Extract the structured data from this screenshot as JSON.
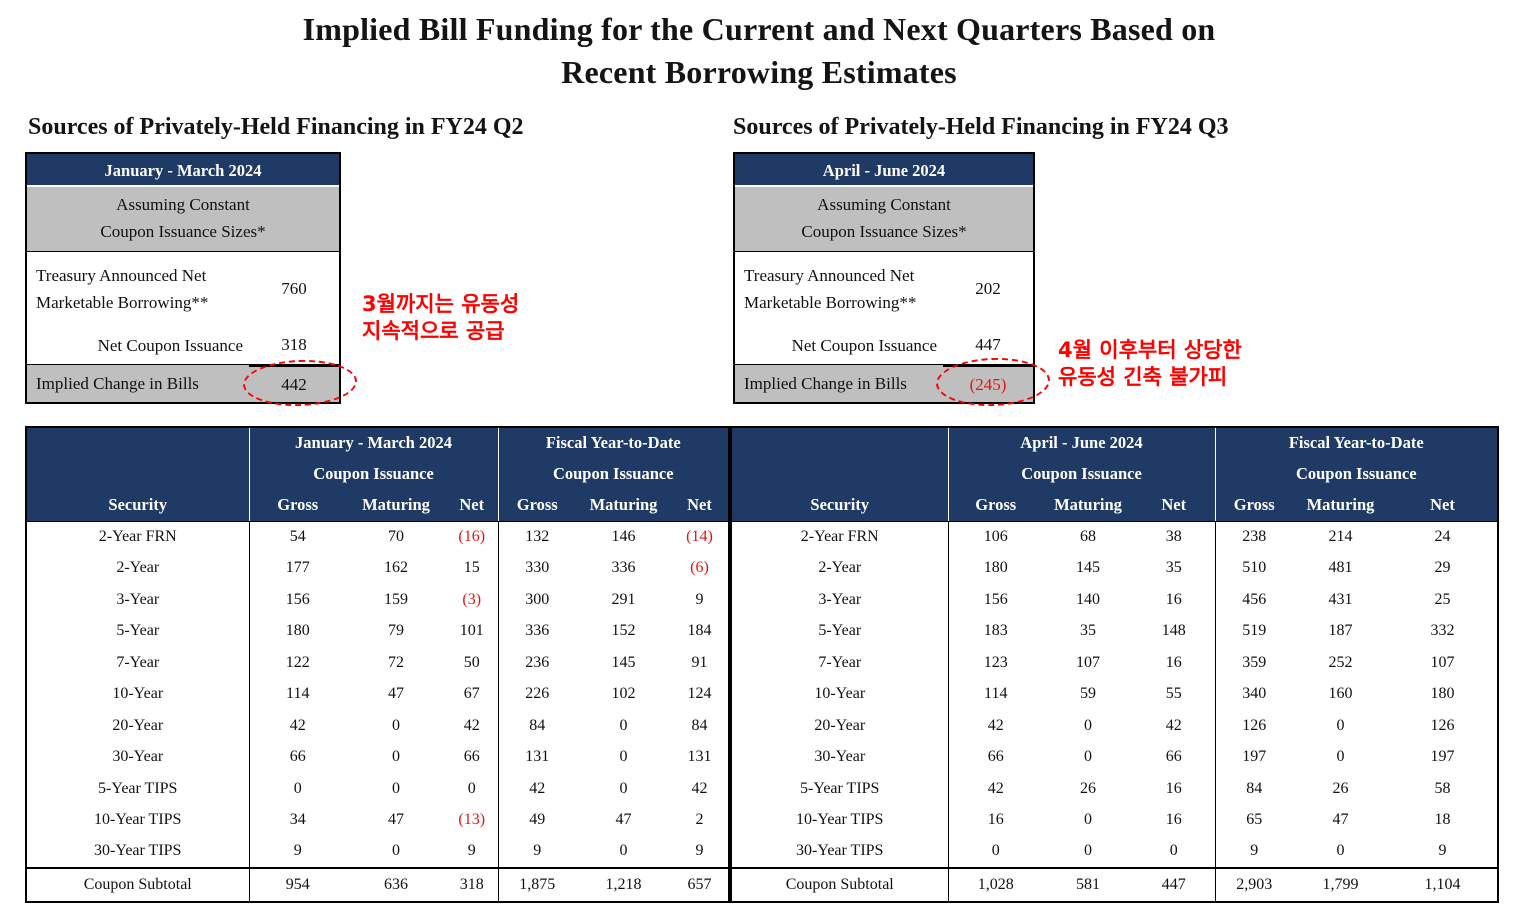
{
  "title": {
    "line1": "Implied Bill Funding for the Current and Next Quarters Based on",
    "line2": "Recent Borrowing Estimates"
  },
  "colors": {
    "header_navy": "#203A66",
    "band_gray": "#BFBFBF",
    "negative_red": "#E01616",
    "annotation_red": "#FF0000"
  },
  "left_panel": {
    "subtitle": "Sources of Privately-Held Financing in FY24 Q2",
    "summary": {
      "period": "January - March 2024",
      "assumption_line1": "Assuming Constant",
      "assumption_line2": "Coupon Issuance Sizes*",
      "borrowing_label_line1": "Treasury Announced Net",
      "borrowing_label_line2": "Marketable Borrowing**",
      "borrowing_value": "760",
      "net_coupon_label": "Net Coupon Issuance",
      "net_coupon_value": "318",
      "implied_label": "Implied Change in Bills",
      "implied_value": "442",
      "implied_negative": "false"
    },
    "annotation_line1": "3월까지는 유동성",
    "annotation_line2": "지속적으로 공급"
  },
  "right_panel": {
    "subtitle": "Sources of Privately-Held Financing in FY24 Q3",
    "summary": {
      "period": "April - June 2024",
      "assumption_line1": "Assuming Constant",
      "assumption_line2": "Coupon Issuance Sizes*",
      "borrowing_label_line1": "Treasury Announced Net",
      "borrowing_label_line2": "Marketable Borrowing**",
      "borrowing_value": "202",
      "net_coupon_label": "Net Coupon Issuance",
      "net_coupon_value": "447",
      "implied_label": "Implied Change in Bills",
      "implied_value": "(245)",
      "implied_negative": "true"
    },
    "annotation_line1": "4월 이후부터 상당한",
    "annotation_line2": "유동성 긴축 불가피"
  },
  "detail_table": {
    "security_label": "Security",
    "coupon_issuance_label": "Coupon Issuance",
    "fiscal_ytd_label": "Fiscal Year-to-Date",
    "col_headers": [
      "Gross",
      "Maturing",
      "Net"
    ],
    "left": {
      "group_title": "January - March 2024",
      "rows": [
        [
          "2-Year FRN",
          "54",
          "70",
          "(16)",
          "132",
          "146",
          "(14)"
        ],
        [
          "2-Year",
          "177",
          "162",
          "15",
          "330",
          "336",
          "(6)"
        ],
        [
          "3-Year",
          "156",
          "159",
          "(3)",
          "300",
          "291",
          "9"
        ],
        [
          "5-Year",
          "180",
          "79",
          "101",
          "336",
          "152",
          "184"
        ],
        [
          "7-Year",
          "122",
          "72",
          "50",
          "236",
          "145",
          "91"
        ],
        [
          "10-Year",
          "114",
          "47",
          "67",
          "226",
          "102",
          "124"
        ],
        [
          "20-Year",
          "42",
          "0",
          "42",
          "84",
          "0",
          "84"
        ],
        [
          "30-Year",
          "66",
          "0",
          "66",
          "131",
          "0",
          "131"
        ],
        [
          "5-Year TIPS",
          "0",
          "0",
          "0",
          "42",
          "0",
          "42"
        ],
        [
          "10-Year TIPS",
          "34",
          "47",
          "(13)",
          "49",
          "47",
          "2"
        ],
        [
          "30-Year TIPS",
          "9",
          "0",
          "9",
          "9",
          "0",
          "9"
        ]
      ],
      "subtotal": [
        "Coupon Subtotal",
        "954",
        "636",
        "318",
        "1,875",
        "1,218",
        "657"
      ]
    },
    "right": {
      "group_title": "April - June 2024",
      "rows": [
        [
          "2-Year FRN",
          "106",
          "68",
          "38",
          "238",
          "214",
          "24"
        ],
        [
          "2-Year",
          "180",
          "145",
          "35",
          "510",
          "481",
          "29"
        ],
        [
          "3-Year",
          "156",
          "140",
          "16",
          "456",
          "431",
          "25"
        ],
        [
          "5-Year",
          "183",
          "35",
          "148",
          "519",
          "187",
          "332"
        ],
        [
          "7-Year",
          "123",
          "107",
          "16",
          "359",
          "252",
          "107"
        ],
        [
          "10-Year",
          "114",
          "59",
          "55",
          "340",
          "160",
          "180"
        ],
        [
          "20-Year",
          "42",
          "0",
          "42",
          "126",
          "0",
          "126"
        ],
        [
          "30-Year",
          "66",
          "0",
          "66",
          "197",
          "0",
          "197"
        ],
        [
          "5-Year TIPS",
          "42",
          "26",
          "16",
          "84",
          "26",
          "58"
        ],
        [
          "10-Year TIPS",
          "16",
          "0",
          "16",
          "65",
          "47",
          "18"
        ],
        [
          "30-Year TIPS",
          "0",
          "0",
          "0",
          "9",
          "0",
          "9"
        ]
      ],
      "subtotal": [
        "Coupon Subtotal",
        "1,028",
        "581",
        "447",
        "2,903",
        "1,799",
        "1,104"
      ]
    }
  }
}
